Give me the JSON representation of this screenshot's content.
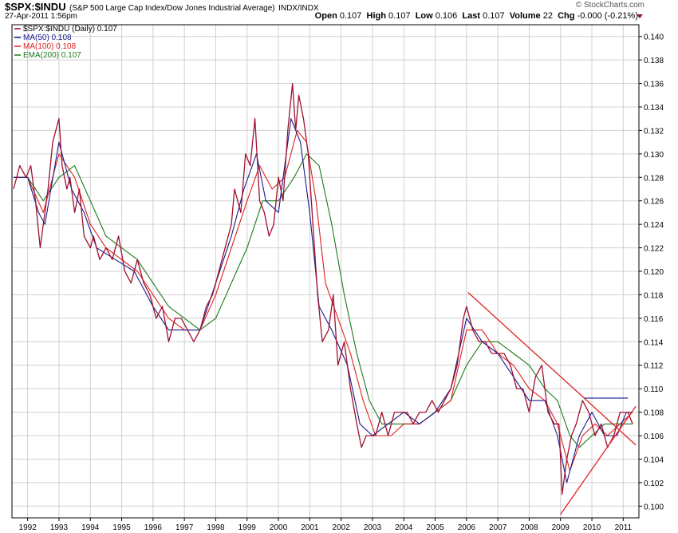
{
  "header": {
    "symbol": "$SPX:$INDU",
    "description": "(S&P 500 Large Cap Index/Dow Jones Industrial Average)",
    "exchange": "INDX/INDX",
    "date": "27-Apr-2011 1:56pm",
    "brand": "© StockCharts.com",
    "quote": {
      "open_label": "Open",
      "open": "0.107",
      "high_label": "High",
      "high": "0.107",
      "low_label": "Low",
      "low": "0.106",
      "last_label": "Last",
      "last": "0.107",
      "volume_label": "Volume",
      "volume": "22",
      "chg_label": "Chg",
      "chg": "-0.000 (-0.21%)"
    }
  },
  "colors": {
    "price": "#a0102e",
    "ma50": "#1a1a8c",
    "ma100": "#e02020",
    "ema200": "#1a7a1a",
    "trend": "#e02020",
    "hline": "#3a3aa0",
    "grid": "#d0d0d0"
  },
  "chart_data": {
    "type": "line",
    "title": "$SPX:$INDU (Daily)",
    "x_unit": "year",
    "xlim": [
      1991.5,
      2011.5
    ],
    "ylim": [
      0.099,
      0.141
    ],
    "x_ticks": [
      1992,
      1993,
      1994,
      1995,
      1996,
      1997,
      1998,
      1999,
      2000,
      2001,
      2002,
      2003,
      2004,
      2005,
      2006,
      2007,
      2008,
      2009,
      2010,
      2011
    ],
    "y_ticks": [
      0.1,
      0.102,
      0.104,
      0.106,
      0.108,
      0.11,
      0.112,
      0.114,
      0.116,
      0.118,
      0.12,
      0.122,
      0.124,
      0.126,
      0.128,
      0.13,
      0.132,
      0.134,
      0.136,
      0.138,
      0.14
    ],
    "legend": [
      {
        "key": "price",
        "label": "$SPX:$INDU (Daily) 0.107"
      },
      {
        "key": "ma50",
        "label": "MA(50) 0.108"
      },
      {
        "key": "ma100",
        "label": "MA(100) 0.108"
      },
      {
        "key": "ema200",
        "label": "EMA(200) 0.107"
      }
    ],
    "series": [
      {
        "name": "$SPX:$INDU",
        "key": "price",
        "x": [
          1991.55,
          1991.75,
          1991.95,
          1992.1,
          1992.25,
          1992.4,
          1992.5,
          1992.65,
          1992.8,
          1993.0,
          1993.1,
          1993.25,
          1993.35,
          1993.5,
          1993.65,
          1993.8,
          1994.0,
          1994.1,
          1994.3,
          1994.5,
          1994.7,
          1994.9,
          1995.1,
          1995.3,
          1995.5,
          1995.7,
          1995.9,
          1996.1,
          1996.3,
          1996.5,
          1996.7,
          1996.9,
          1997.1,
          1997.3,
          1997.5,
          1997.7,
          1997.9,
          1998.1,
          1998.3,
          1998.5,
          1998.6,
          1998.8,
          1998.95,
          1999.1,
          1999.25,
          1999.4,
          1999.55,
          1999.7,
          1999.85,
          2000.0,
          2000.15,
          2000.3,
          2000.45,
          2000.55,
          2000.65,
          2000.8,
          2000.95,
          2001.1,
          2001.25,
          2001.4,
          2001.6,
          2001.75,
          2001.9,
          2002.1,
          2002.3,
          2002.5,
          2002.65,
          2002.8,
          2002.95,
          2003.1,
          2003.3,
          2003.5,
          2003.7,
          2003.9,
          2004.1,
          2004.3,
          2004.5,
          2004.7,
          2004.9,
          2005.1,
          2005.3,
          2005.5,
          2005.7,
          2005.9,
          2006.0,
          2006.2,
          2006.4,
          2006.6,
          2006.8,
          2007.0,
          2007.2,
          2007.4,
          2007.6,
          2007.8,
          2008.0,
          2008.2,
          2008.4,
          2008.6,
          2008.8,
          2008.95,
          2009.05,
          2009.2,
          2009.35,
          2009.5,
          2009.7,
          2009.9,
          2010.1,
          2010.3,
          2010.5,
          2010.7,
          2010.9,
          2011.0,
          2011.15,
          2011.3
        ],
        "values": [
          0.127,
          0.129,
          0.128,
          0.129,
          0.126,
          0.122,
          0.124,
          0.127,
          0.131,
          0.133,
          0.129,
          0.127,
          0.128,
          0.125,
          0.127,
          0.123,
          0.122,
          0.123,
          0.121,
          0.122,
          0.121,
          0.123,
          0.12,
          0.119,
          0.121,
          0.119,
          0.118,
          0.116,
          0.117,
          0.114,
          0.116,
          0.116,
          0.115,
          0.114,
          0.115,
          0.117,
          0.118,
          0.12,
          0.122,
          0.124,
          0.127,
          0.125,
          0.13,
          0.129,
          0.133,
          0.126,
          0.125,
          0.123,
          0.124,
          0.128,
          0.126,
          0.132,
          0.136,
          0.132,
          0.135,
          0.133,
          0.13,
          0.124,
          0.118,
          0.114,
          0.115,
          0.118,
          0.112,
          0.114,
          0.11,
          0.107,
          0.105,
          0.106,
          0.106,
          0.106,
          0.108,
          0.106,
          0.108,
          0.108,
          0.108,
          0.107,
          0.108,
          0.108,
          0.109,
          0.108,
          0.109,
          0.11,
          0.112,
          0.116,
          0.117,
          0.115,
          0.114,
          0.114,
          0.113,
          0.113,
          0.113,
          0.112,
          0.11,
          0.11,
          0.108,
          0.111,
          0.112,
          0.108,
          0.107,
          0.107,
          0.101,
          0.104,
          0.106,
          0.107,
          0.109,
          0.108,
          0.106,
          0.107,
          0.105,
          0.106,
          0.108,
          0.108,
          0.108,
          0.107
        ]
      },
      {
        "name": "MA(50)",
        "key": "ma50",
        "x": [
          1991.55,
          1992.0,
          1992.35,
          1992.55,
          1993.0,
          1993.4,
          1993.8,
          1994.2,
          1994.8,
          1995.4,
          1996.0,
          1996.5,
          1997.0,
          1997.5,
          1998.0,
          1998.5,
          1998.9,
          1999.3,
          1999.6,
          2000.0,
          2000.4,
          2000.7,
          2001.0,
          2001.3,
          2001.7,
          2002.2,
          2002.6,
          2003.0,
          2003.5,
          2004.0,
          2004.5,
          2005.0,
          2005.5,
          2006.0,
          2006.5,
          2007.0,
          2007.5,
          2008.0,
          2008.5,
          2008.9,
          2009.2,
          2009.6,
          2010.0,
          2010.4,
          2010.8,
          2011.1,
          2011.3
        ],
        "values": [
          0.128,
          0.128,
          0.125,
          0.124,
          0.131,
          0.127,
          0.125,
          0.122,
          0.121,
          0.12,
          0.117,
          0.115,
          0.115,
          0.115,
          0.119,
          0.123,
          0.127,
          0.13,
          0.126,
          0.125,
          0.133,
          0.131,
          0.125,
          0.117,
          0.115,
          0.112,
          0.107,
          0.106,
          0.107,
          0.108,
          0.107,
          0.108,
          0.11,
          0.116,
          0.114,
          0.113,
          0.111,
          0.109,
          0.109,
          0.106,
          0.102,
          0.106,
          0.108,
          0.106,
          0.106,
          0.108,
          0.108
        ]
      },
      {
        "name": "MA(100)",
        "key": "ma100",
        "x": [
          1991.55,
          1992.0,
          1992.5,
          1993.0,
          1993.5,
          1994.0,
          1994.5,
          1995.0,
          1995.5,
          1996.0,
          1996.5,
          1997.0,
          1997.5,
          1998.0,
          1998.5,
          1999.0,
          1999.4,
          1999.8,
          2000.2,
          2000.6,
          2000.9,
          2001.2,
          2001.5,
          2001.9,
          2002.3,
          2002.7,
          2003.1,
          2003.6,
          2004.0,
          2004.5,
          2005.0,
          2005.5,
          2006.0,
          2006.5,
          2007.0,
          2007.5,
          2008.0,
          2008.5,
          2008.9,
          2009.3,
          2009.7,
          2010.1,
          2010.5,
          2010.9,
          2011.3
        ],
        "values": [
          0.128,
          0.128,
          0.125,
          0.13,
          0.128,
          0.124,
          0.122,
          0.121,
          0.12,
          0.118,
          0.116,
          0.115,
          0.115,
          0.118,
          0.122,
          0.126,
          0.129,
          0.127,
          0.128,
          0.132,
          0.131,
          0.126,
          0.119,
          0.116,
          0.113,
          0.109,
          0.106,
          0.106,
          0.107,
          0.107,
          0.108,
          0.109,
          0.115,
          0.115,
          0.113,
          0.112,
          0.11,
          0.109,
          0.107,
          0.103,
          0.106,
          0.107,
          0.106,
          0.107,
          0.108
        ]
      },
      {
        "name": "EMA(200)",
        "key": "ema200",
        "x": [
          1991.55,
          1992.0,
          1992.5,
          1993.0,
          1993.5,
          1994.0,
          1994.5,
          1995.0,
          1995.5,
          1996.0,
          1996.5,
          1997.0,
          1997.5,
          1998.0,
          1998.5,
          1999.0,
          1999.5,
          2000.0,
          2000.5,
          2000.9,
          2001.3,
          2001.7,
          2002.1,
          2002.5,
          2002.9,
          2003.3,
          2003.7,
          2004.0,
          2004.5,
          2005.0,
          2005.5,
          2006.0,
          2006.5,
          2007.0,
          2007.5,
          2008.0,
          2008.5,
          2008.9,
          2009.3,
          2009.6,
          2010.0,
          2010.4,
          2010.8,
          2011.3
        ],
        "values": [
          0.128,
          0.128,
          0.126,
          0.128,
          0.129,
          0.126,
          0.123,
          0.122,
          0.121,
          0.119,
          0.117,
          0.116,
          0.115,
          0.116,
          0.119,
          0.122,
          0.126,
          0.126,
          0.128,
          0.13,
          0.129,
          0.124,
          0.118,
          0.113,
          0.109,
          0.107,
          0.107,
          0.107,
          0.107,
          0.108,
          0.109,
          0.112,
          0.114,
          0.114,
          0.113,
          0.112,
          0.11,
          0.109,
          0.106,
          0.105,
          0.106,
          0.107,
          0.107,
          0.107
        ]
      }
    ],
    "annotations": [
      {
        "type": "trendline",
        "from": [
          2006.05,
          0.1182
        ],
        "to": [
          2011.4,
          0.1052
        ]
      },
      {
        "type": "trendline",
        "from": [
          2009.0,
          0.0993
        ],
        "to": [
          2011.4,
          0.1085
        ]
      },
      {
        "type": "hline",
        "from": [
          2009.75,
          0.1092
        ],
        "to": [
          2011.15,
          0.1092
        ]
      }
    ]
  }
}
